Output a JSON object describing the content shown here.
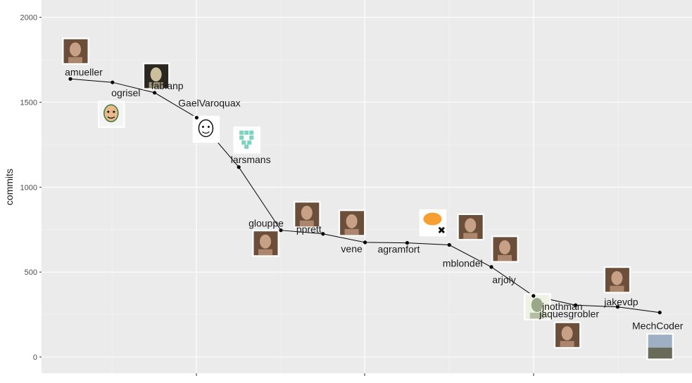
{
  "chart_data": {
    "type": "line",
    "title": "",
    "xlabel": "",
    "ylabel": "commits",
    "ylim": [
      -100,
      2050
    ],
    "yticks": [
      0,
      500,
      1000,
      1500,
      2000
    ],
    "xtick_labels": [
      "",
      "",
      ""
    ],
    "grid": true,
    "legend": "none",
    "points": [
      {
        "label": "amueller",
        "y": 1637,
        "avatar": "photo-icon"
      },
      {
        "label": "ogrisel",
        "y": 1617,
        "avatar": "cartoon-face-icon"
      },
      {
        "label": "fabianp",
        "y": 1556,
        "avatar": "sculpture-photo-icon"
      },
      {
        "label": "GaelVaroquax",
        "y": 1409,
        "avatar": "sketch-face-icon"
      },
      {
        "label": "larsmans",
        "y": 1118,
        "avatar": "identicon-icon"
      },
      {
        "label": "glouppe",
        "y": 746,
        "avatar": "photo-icon"
      },
      {
        "label": "pprett",
        "y": 725,
        "avatar": "photo-icon"
      },
      {
        "label": "vene",
        "y": 675,
        "avatar": "photo-icon"
      },
      {
        "label": "agramfort",
        "y": 672,
        "avatar": "orange-blob-icon"
      },
      {
        "label": "mblondel",
        "y": 660,
        "avatar": "photo-icon"
      },
      {
        "label": "arjoly",
        "y": 530,
        "avatar": "photo-icon"
      },
      {
        "label": "jnothman",
        "y": 360,
        "avatar": "sketch-drawing-icon"
      },
      {
        "label": "jaquesgrobler",
        "y": 305,
        "avatar": "photo-icon"
      },
      {
        "label": "jakevdp",
        "y": 295,
        "avatar": "photo-icon"
      },
      {
        "label": "MechCoder",
        "y": 262,
        "avatar": "landscape-photo-icon"
      }
    ]
  }
}
